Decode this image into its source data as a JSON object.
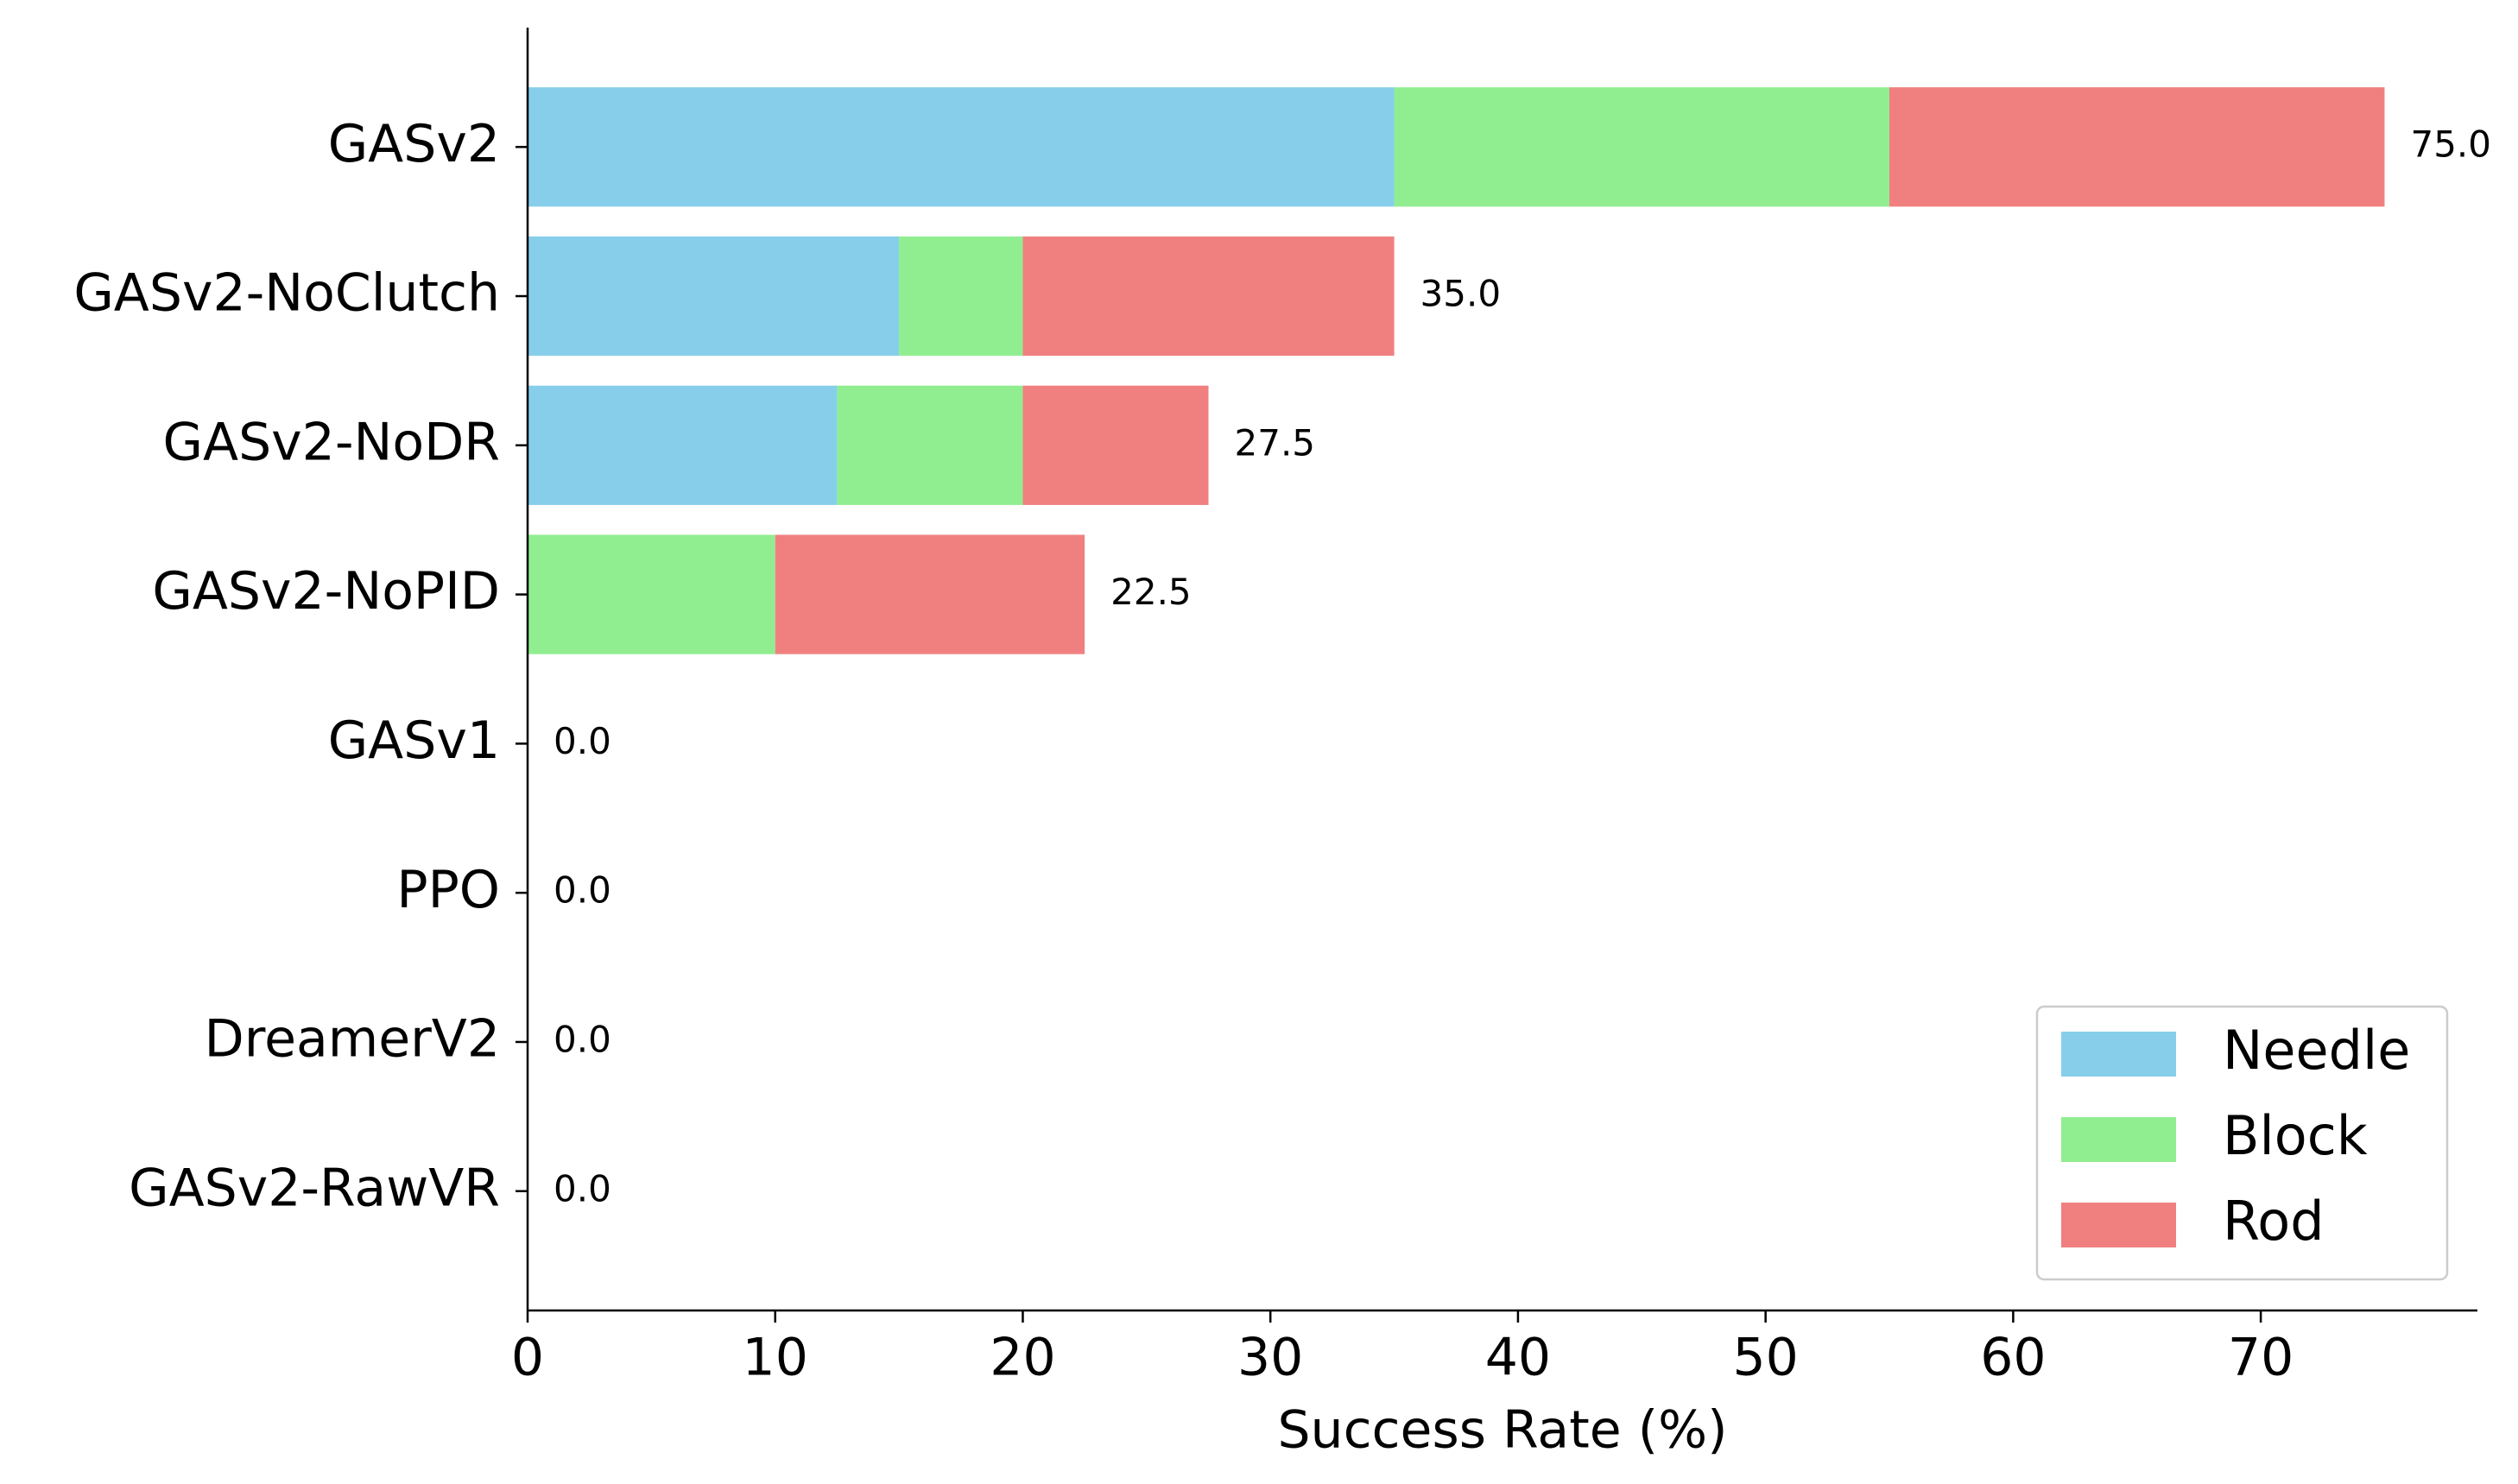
{
  "chart_data": {
    "type": "stacked-barh",
    "categories": [
      "GASv2",
      "GASv2-NoClutch",
      "GASv2-NoDR",
      "GASv2-NoPID",
      "GASv1",
      "PPO",
      "DreamerV2",
      "GASv2-RawVR"
    ],
    "series": [
      {
        "name": "Needle",
        "color": "#87ceeb",
        "values": [
          35,
          15,
          12.5,
          0,
          0,
          0,
          0,
          0
        ]
      },
      {
        "name": "Block",
        "color": "#90ee90",
        "values": [
          20,
          5,
          7.5,
          10,
          0,
          0,
          0,
          0
        ]
      },
      {
        "name": "Rod",
        "color": "#f08080",
        "values": [
          20,
          15,
          7.5,
          12.5,
          0,
          0,
          0,
          0
        ]
      }
    ],
    "totals": [
      75,
      35,
      27.5,
      22.5,
      0,
      0,
      0,
      0
    ],
    "value_labels": [
      "75.0",
      "35.0",
      "27.5",
      "22.5",
      "0.0",
      "0.0",
      "0.0",
      "0.0"
    ],
    "xlabel": "Success Rate (%)",
    "xlim": [
      0,
      78.75
    ],
    "xticks": [
      0,
      10,
      20,
      30,
      40,
      50,
      60,
      70
    ],
    "legend": "lower right",
    "grid": false
  }
}
